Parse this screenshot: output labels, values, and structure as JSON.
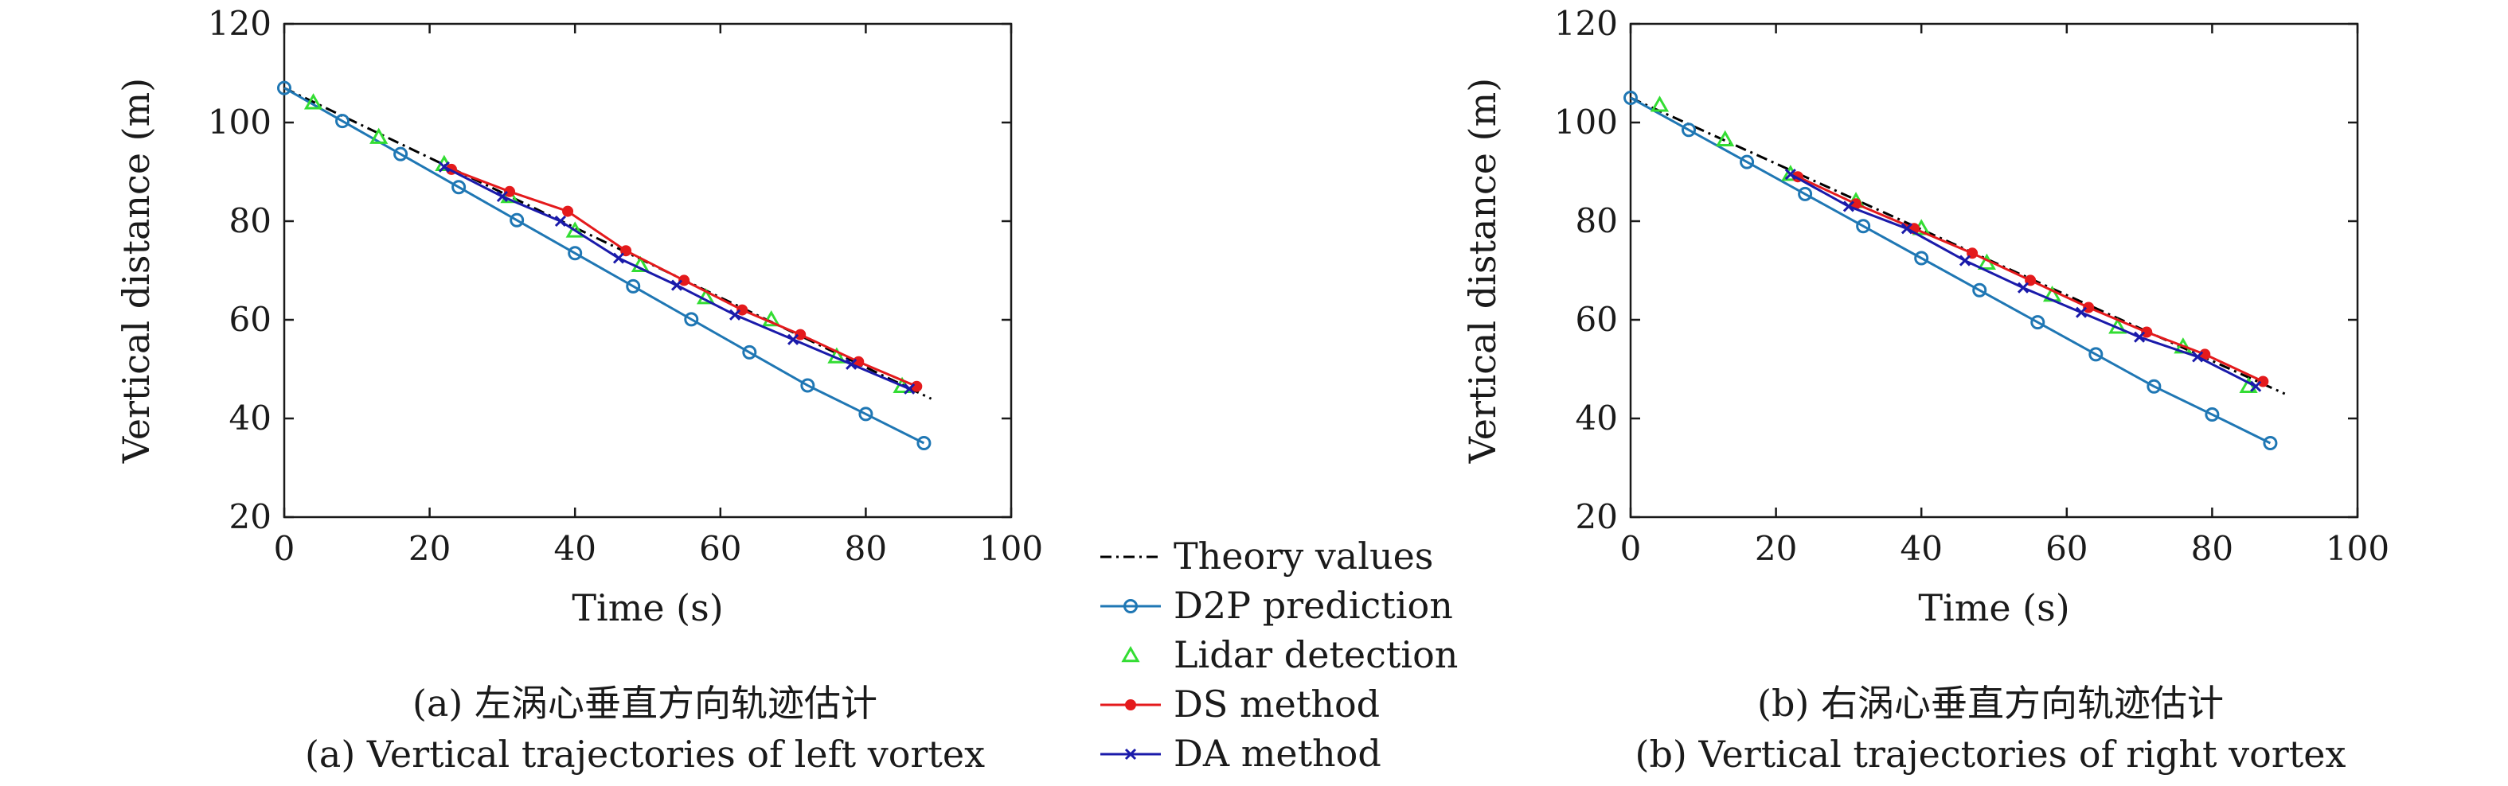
{
  "chart_data": [
    {
      "type": "line",
      "xlabel": "Time (s)",
      "ylabel": "Vertical distance (m)",
      "xlim": [
        0,
        100
      ],
      "ylim": [
        20,
        120
      ],
      "xticks": [
        "0",
        "20",
        "40",
        "60",
        "80",
        "100"
      ],
      "yticks": [
        "20",
        "40",
        "60",
        "80",
        "100",
        "120"
      ],
      "caption_cn": "(a) 左涡心垂直方向轨迹估计",
      "caption_en": "(a) Vertical trajectories of left vortex",
      "series": [
        {
          "name": "Theory values",
          "color": "#000000",
          "style": "dash-dot",
          "marker": "none",
          "x": [
            0,
            89
          ],
          "y": [
            107,
            44
          ]
        },
        {
          "name": "D2P prediction",
          "color": "#1f77b4",
          "style": "solid",
          "marker": "circle",
          "x": [
            0,
            8,
            16,
            24,
            32,
            40,
            48,
            56,
            64,
            72,
            80,
            88
          ],
          "y": [
            107,
            100.3,
            93.6,
            86.9,
            80.2,
            73.5,
            66.8,
            60.1,
            53.4,
            46.7,
            40.9,
            35
          ]
        },
        {
          "name": "Lidar detection",
          "color": "#33dd33",
          "style": "none",
          "marker": "triangle",
          "x": [
            4,
            13,
            22,
            31,
            40,
            49,
            58,
            67,
            76,
            85
          ],
          "y": [
            104,
            97,
            91.5,
            85,
            78,
            71,
            64.5,
            60,
            52.5,
            46.5
          ]
        },
        {
          "name": "DS method",
          "color": "#e41a1c",
          "style": "solid",
          "marker": "dot",
          "x": [
            23,
            31,
            39,
            47,
            55,
            63,
            71,
            79,
            87
          ],
          "y": [
            90.5,
            86,
            82,
            74,
            68,
            62,
            57,
            51.5,
            46.5
          ]
        },
        {
          "name": "DA method",
          "color": "#1a1aaa",
          "style": "solid",
          "marker": "x",
          "x": [
            22,
            30,
            38,
            46,
            54,
            62,
            70,
            78,
            86
          ],
          "y": [
            91,
            85,
            80,
            72.5,
            67,
            61,
            56,
            51,
            46
          ]
        }
      ]
    },
    {
      "type": "line",
      "xlabel": "Time (s)",
      "ylabel": "Vertical distance (m)",
      "xlim": [
        0,
        100
      ],
      "ylim": [
        20,
        120
      ],
      "xticks": [
        "0",
        "20",
        "40",
        "60",
        "80",
        "100"
      ],
      "yticks": [
        "20",
        "40",
        "60",
        "80",
        "100",
        "120"
      ],
      "caption_cn": "(b) 右涡心垂直方向轨迹估计",
      "caption_en": "(b) Vertical trajectories of right vortex",
      "series": [
        {
          "name": "Theory values",
          "color": "#000000",
          "style": "dash-dot",
          "marker": "none",
          "x": [
            0,
            90
          ],
          "y": [
            105,
            45
          ]
        },
        {
          "name": "D2P prediction",
          "color": "#1f77b4",
          "style": "solid",
          "marker": "circle",
          "x": [
            0,
            8,
            16,
            24,
            32,
            40,
            48,
            56,
            64,
            72,
            80,
            88
          ],
          "y": [
            105,
            98.5,
            92,
            85.5,
            79,
            72.5,
            66,
            59.5,
            53,
            46.5,
            40.8,
            35
          ]
        },
        {
          "name": "Lidar detection",
          "color": "#33dd33",
          "style": "none",
          "marker": "triangle",
          "x": [
            4,
            13,
            22,
            31,
            40,
            49,
            58,
            67,
            76,
            85
          ],
          "y": [
            103.5,
            96.5,
            89.5,
            84,
            78.5,
            71.5,
            65,
            58.5,
            54.5,
            46.5
          ]
        },
        {
          "name": "DS method",
          "color": "#e41a1c",
          "style": "solid",
          "marker": "dot",
          "x": [
            23,
            31,
            39,
            47,
            55,
            63,
            71,
            79,
            87
          ],
          "y": [
            89,
            83.5,
            78.5,
            73.5,
            68,
            62.5,
            57.5,
            53,
            47.5
          ]
        },
        {
          "name": "DA method",
          "color": "#1a1aaa",
          "style": "solid",
          "marker": "x",
          "x": [
            22,
            30,
            38,
            46,
            54,
            62,
            70,
            78,
            86
          ],
          "y": [
            89.5,
            83,
            78.5,
            72,
            66.5,
            61.5,
            56.5,
            52.5,
            46.5
          ]
        }
      ]
    }
  ],
  "legend": [
    {
      "label": "Theory values",
      "color": "#000000",
      "style": "dash-dot",
      "marker": "none"
    },
    {
      "label": "D2P prediction",
      "color": "#1f77b4",
      "style": "solid",
      "marker": "circle"
    },
    {
      "label": "Lidar detection",
      "color": "#33dd33",
      "style": "none",
      "marker": "triangle"
    },
    {
      "label": "DS method",
      "color": "#e41a1c",
      "style": "solid",
      "marker": "dot"
    },
    {
      "label": "DA method",
      "color": "#1a1aaa",
      "style": "solid",
      "marker": "x"
    }
  ]
}
